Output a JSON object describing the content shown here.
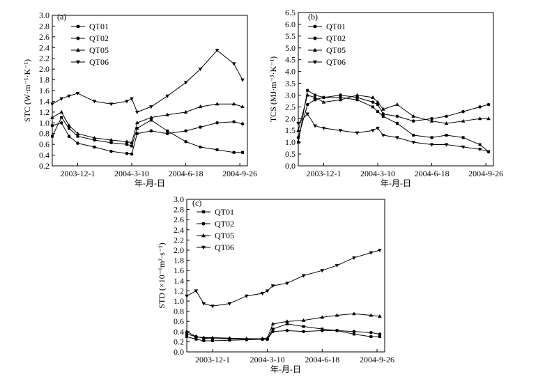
{
  "chart_data": [
    {
      "type": "line",
      "panel_label": "(a)",
      "ylabel": "STC (W·m⁻¹·K⁻¹)",
      "xlabel": "年-月-日",
      "x_ticks": [
        "2003-12-1",
        "2004-3-10",
        "2004-6-18",
        "2004-9-26"
      ],
      "x_range": [
        "2003-10-15",
        "2004-10-10"
      ],
      "ylim": [
        0.2,
        3.0
      ],
      "y_ticks": [
        0.2,
        0.4,
        0.6,
        0.8,
        1.0,
        1.2,
        1.4,
        1.6,
        1.8,
        2.0,
        2.2,
        2.4,
        2.6,
        2.8,
        3.0
      ],
      "legend_position": "top-left",
      "grid": false,
      "series": [
        {
          "name": "QT01",
          "marker": "square",
          "x": [
            "2003-10-15",
            "2003-11-1",
            "2003-11-15",
            "2003-12-1",
            "2004-1-1",
            "2004-2-1",
            "2004-3-1",
            "2004-3-10",
            "2004-3-20",
            "2004-4-15",
            "2004-5-15",
            "2004-6-18",
            "2004-7-15",
            "2004-8-15",
            "2004-9-15",
            "2004-10-1"
          ],
          "values": [
            0.75,
            1.1,
            0.9,
            0.75,
            0.68,
            0.63,
            0.6,
            0.57,
            0.9,
            1.05,
            0.85,
            0.65,
            0.55,
            0.5,
            0.45,
            0.45
          ]
        },
        {
          "name": "QT02",
          "marker": "circle",
          "x": [
            "2003-10-15",
            "2003-11-1",
            "2003-11-15",
            "2003-12-1",
            "2004-1-1",
            "2004-2-1",
            "2004-3-1",
            "2004-3-10",
            "2004-3-20",
            "2004-4-15",
            "2004-5-15",
            "2004-6-18",
            "2004-7-15",
            "2004-8-15",
            "2004-9-15",
            "2004-10-1"
          ],
          "values": [
            0.95,
            1.0,
            0.75,
            0.62,
            0.55,
            0.47,
            0.43,
            0.42,
            0.8,
            0.85,
            0.8,
            0.85,
            0.92,
            1.0,
            1.02,
            0.98
          ]
        },
        {
          "name": "QT05",
          "marker": "triangle-up",
          "x": [
            "2003-10-15",
            "2003-11-1",
            "2003-11-15",
            "2003-12-1",
            "2004-1-1",
            "2004-2-1",
            "2004-3-1",
            "2004-3-10",
            "2004-3-20",
            "2004-4-15",
            "2004-5-15",
            "2004-6-18",
            "2004-7-15",
            "2004-8-15",
            "2004-9-15",
            "2004-10-1"
          ],
          "values": [
            1.1,
            1.2,
            0.95,
            0.8,
            0.72,
            0.68,
            0.65,
            0.63,
            1.0,
            1.1,
            1.15,
            1.2,
            1.3,
            1.35,
            1.35,
            1.3
          ]
        },
        {
          "name": "QT06",
          "marker": "triangle-down",
          "x": [
            "2003-10-15",
            "2003-11-1",
            "2003-11-15",
            "2003-12-1",
            "2004-1-1",
            "2004-2-1",
            "2004-3-1",
            "2004-3-10",
            "2004-3-20",
            "2004-4-15",
            "2004-5-15",
            "2004-6-18",
            "2004-7-15",
            "2004-8-15",
            "2004-9-15",
            "2004-10-1"
          ],
          "values": [
            1.35,
            1.45,
            1.5,
            1.55,
            1.4,
            1.35,
            1.4,
            1.45,
            1.2,
            1.3,
            1.5,
            1.75,
            2.0,
            2.35,
            2.1,
            1.8
          ]
        }
      ]
    },
    {
      "type": "line",
      "panel_label": "(b)",
      "ylabel": "TCS (MJ·m⁻³·K⁻¹)",
      "xlabel": "年-月-日",
      "x_ticks": [
        "2003-12-1",
        "2004-3-10",
        "2004-6-18",
        "2004-9-26"
      ],
      "x_range": [
        "2003-10-15",
        "2004-10-10"
      ],
      "ylim": [
        0.0,
        6.5
      ],
      "y_ticks": [
        0.0,
        0.5,
        1.0,
        1.5,
        2.0,
        2.5,
        3.0,
        3.5,
        4.0,
        4.5,
        5.0,
        5.5,
        6.0,
        6.5
      ],
      "legend_position": "top-right",
      "grid": false,
      "series": [
        {
          "name": "QT01",
          "marker": "square",
          "x": [
            "2003-10-15",
            "2003-11-1",
            "2003-11-15",
            "2003-12-1",
            "2004-1-1",
            "2004-2-1",
            "2004-3-1",
            "2004-3-10",
            "2004-3-20",
            "2004-4-15",
            "2004-5-15",
            "2004-6-18",
            "2004-7-15",
            "2004-8-15",
            "2004-9-15",
            "2004-10-1"
          ],
          "values": [
            1.0,
            3.2,
            3.0,
            2.9,
            2.9,
            2.8,
            2.5,
            2.3,
            2.1,
            1.8,
            1.3,
            1.2,
            1.3,
            1.2,
            0.9,
            0.6
          ]
        },
        {
          "name": "QT02",
          "marker": "circle",
          "x": [
            "2003-10-15",
            "2003-11-1",
            "2003-11-15",
            "2003-12-1",
            "2004-1-1",
            "2004-2-1",
            "2004-3-1",
            "2004-3-10",
            "2004-3-20",
            "2004-4-15",
            "2004-5-15",
            "2004-6-18",
            "2004-7-15",
            "2004-8-15",
            "2004-9-15",
            "2004-10-1"
          ],
          "values": [
            1.2,
            2.6,
            2.8,
            2.9,
            3.0,
            2.9,
            2.7,
            2.6,
            2.2,
            2.1,
            1.9,
            2.0,
            2.1,
            2.3,
            2.5,
            2.6
          ]
        },
        {
          "name": "QT05",
          "marker": "triangle-up",
          "x": [
            "2003-10-15",
            "2003-11-1",
            "2003-11-15",
            "2003-12-1",
            "2004-1-1",
            "2004-2-1",
            "2004-3-1",
            "2004-3-10",
            "2004-3-20",
            "2004-4-15",
            "2004-5-15",
            "2004-6-18",
            "2004-7-15",
            "2004-8-15",
            "2004-9-15",
            "2004-10-1"
          ],
          "values": [
            1.5,
            3.0,
            2.9,
            2.7,
            2.8,
            3.0,
            2.9,
            2.7,
            2.4,
            2.6,
            2.1,
            1.9,
            1.8,
            1.9,
            2.0,
            2.0
          ]
        },
        {
          "name": "QT06",
          "marker": "triangle-down",
          "x": [
            "2003-10-15",
            "2003-11-1",
            "2003-11-15",
            "2003-12-1",
            "2004-1-1",
            "2004-2-1",
            "2004-3-1",
            "2004-3-10",
            "2004-3-20",
            "2004-4-15",
            "2004-5-15",
            "2004-6-18",
            "2004-7-15",
            "2004-8-15",
            "2004-9-15",
            "2004-10-1"
          ],
          "values": [
            1.8,
            2.2,
            1.7,
            1.6,
            1.5,
            1.4,
            1.5,
            1.6,
            1.3,
            1.2,
            1.0,
            0.9,
            0.9,
            0.8,
            0.7,
            0.6
          ]
        }
      ]
    },
    {
      "type": "line",
      "panel_label": "(c)",
      "ylabel": "STD (×10⁻⁶m²·s⁻¹)",
      "xlabel": "年-月-日",
      "x_ticks": [
        "2003-12-1",
        "2004-3-10",
        "2004-6-18",
        "2004-9-26"
      ],
      "x_range": [
        "2003-10-15",
        "2004-10-10"
      ],
      "ylim": [
        0.0,
        3.0
      ],
      "y_ticks": [
        0.0,
        0.2,
        0.4,
        0.6,
        0.8,
        1.0,
        1.2,
        1.4,
        1.6,
        1.8,
        2.0,
        2.2,
        2.4,
        2.6,
        2.8,
        3.0
      ],
      "legend_position": "top-left",
      "grid": false,
      "series": [
        {
          "name": "QT01",
          "marker": "square",
          "x": [
            "2003-10-15",
            "2003-11-1",
            "2003-11-15",
            "2003-12-1",
            "2004-1-1",
            "2004-2-1",
            "2004-3-1",
            "2004-3-10",
            "2004-3-20",
            "2004-4-15",
            "2004-5-15",
            "2004-6-18",
            "2004-7-15",
            "2004-8-15",
            "2004-9-15",
            "2004-10-1"
          ],
          "values": [
            0.3,
            0.25,
            0.22,
            0.22,
            0.23,
            0.24,
            0.25,
            0.25,
            0.45,
            0.55,
            0.5,
            0.45,
            0.42,
            0.35,
            0.3,
            0.3
          ]
        },
        {
          "name": "QT02",
          "marker": "circle",
          "x": [
            "2003-10-15",
            "2003-11-1",
            "2003-11-15",
            "2003-12-1",
            "2004-1-1",
            "2004-2-1",
            "2004-3-1",
            "2004-3-10",
            "2004-3-20",
            "2004-4-15",
            "2004-5-15",
            "2004-6-18",
            "2004-7-15",
            "2004-8-15",
            "2004-9-15",
            "2004-10-1"
          ],
          "values": [
            0.35,
            0.3,
            0.27,
            0.26,
            0.26,
            0.25,
            0.25,
            0.25,
            0.4,
            0.42,
            0.4,
            0.42,
            0.42,
            0.4,
            0.38,
            0.35
          ]
        },
        {
          "name": "QT05",
          "marker": "triangle-up",
          "x": [
            "2003-10-15",
            "2003-11-1",
            "2003-11-15",
            "2003-12-1",
            "2004-1-1",
            "2004-2-1",
            "2004-3-1",
            "2004-3-10",
            "2004-3-20",
            "2004-4-15",
            "2004-5-15",
            "2004-6-18",
            "2004-7-15",
            "2004-8-15",
            "2004-9-15",
            "2004-10-1"
          ],
          "values": [
            0.4,
            0.3,
            0.28,
            0.28,
            0.27,
            0.26,
            0.26,
            0.27,
            0.55,
            0.6,
            0.62,
            0.68,
            0.72,
            0.75,
            0.72,
            0.7
          ]
        },
        {
          "name": "QT06",
          "marker": "triangle-down",
          "x": [
            "2003-10-15",
            "2003-11-1",
            "2003-11-15",
            "2003-12-1",
            "2004-1-1",
            "2004-2-1",
            "2004-3-1",
            "2004-3-10",
            "2004-3-20",
            "2004-4-15",
            "2004-5-15",
            "2004-6-18",
            "2004-7-15",
            "2004-8-15",
            "2004-9-15",
            "2004-10-1"
          ],
          "values": [
            1.1,
            1.2,
            0.95,
            0.9,
            0.95,
            1.1,
            1.15,
            1.2,
            1.3,
            1.35,
            1.5,
            1.6,
            1.7,
            1.85,
            1.95,
            2.0
          ]
        }
      ]
    }
  ]
}
